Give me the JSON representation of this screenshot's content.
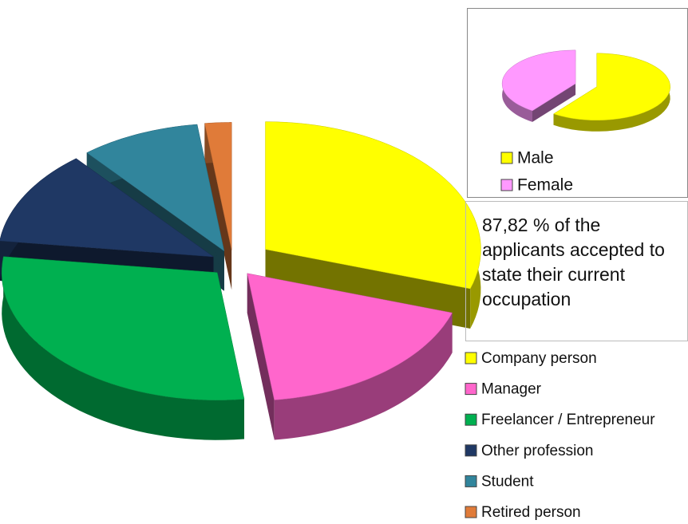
{
  "chart_data": [
    {
      "type": "pie",
      "categories": [
        "Company person",
        "Manager",
        "Freelancer / Entrepreneur",
        "Other profession",
        "Student",
        "Retired person"
      ],
      "values": [
        30,
        18,
        29,
        12,
        9,
        2
      ],
      "colors": [
        "#ffff00",
        "#ff66cc",
        "#00b050",
        "#1f3864",
        "#31859c",
        "#e07b39"
      ],
      "annotation": "87,82 % of the applicants accepted to state their current occupation"
    },
    {
      "type": "pie",
      "categories": [
        "Male",
        "Female"
      ],
      "values": [
        60,
        40
      ],
      "colors": [
        "#ffff00",
        "#ff99ff"
      ]
    }
  ]
}
